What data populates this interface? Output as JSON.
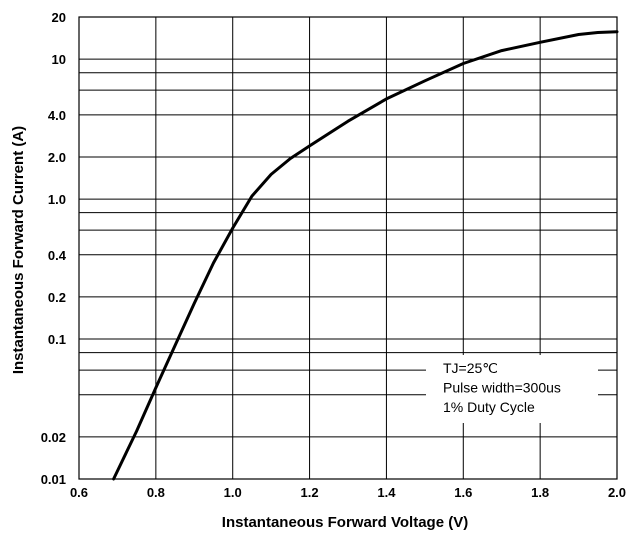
{
  "chart_data": {
    "type": "line",
    "xlabel": "Instantaneous Forward Voltage (V)",
    "ylabel": "Instantaneous Forward Current (A)",
    "xlim": [
      0.6,
      2.0
    ],
    "ylim": [
      0.01,
      20
    ],
    "yscale": "log",
    "x_ticks": [
      0.6,
      0.8,
      1.0,
      1.2,
      1.4,
      1.6,
      1.8,
      2.0
    ],
    "x_tick_labels": [
      "0.6",
      "0.8",
      "1.0",
      "1.2",
      "1.4",
      "1.6",
      "1.8",
      "2.0"
    ],
    "y_tick_values": [
      0.01,
      0.02,
      0.1,
      0.2,
      0.4,
      1.0,
      2.0,
      4.0,
      10,
      20
    ],
    "y_tick_labels": [
      "0.01",
      "0.02",
      "0.1",
      "0.2",
      "0.4",
      "1.0",
      "2.0",
      "4.0",
      "10",
      "20"
    ],
    "y_minor_grid": [
      0.04,
      0.06,
      0.08,
      0.4,
      0.6,
      0.8,
      4,
      6,
      8
    ],
    "grid": true,
    "annotation_lines": [
      "TJ=25℃",
      "Pulse width=300us",
      "1% Duty Cycle"
    ],
    "series": [
      {
        "x": [
          0.69,
          0.75,
          0.8,
          0.85,
          0.9,
          0.95,
          1.0,
          1.05,
          1.1,
          1.15,
          1.2,
          1.3,
          1.4,
          1.5,
          1.6,
          1.7,
          1.8,
          1.9,
          1.95,
          2.0
        ],
        "y": [
          0.01,
          0.022,
          0.045,
          0.09,
          0.18,
          0.35,
          0.62,
          1.05,
          1.5,
          1.95,
          2.4,
          3.6,
          5.2,
          7.0,
          9.3,
          11.5,
          13.2,
          15.0,
          15.5,
          15.7
        ]
      }
    ]
  }
}
